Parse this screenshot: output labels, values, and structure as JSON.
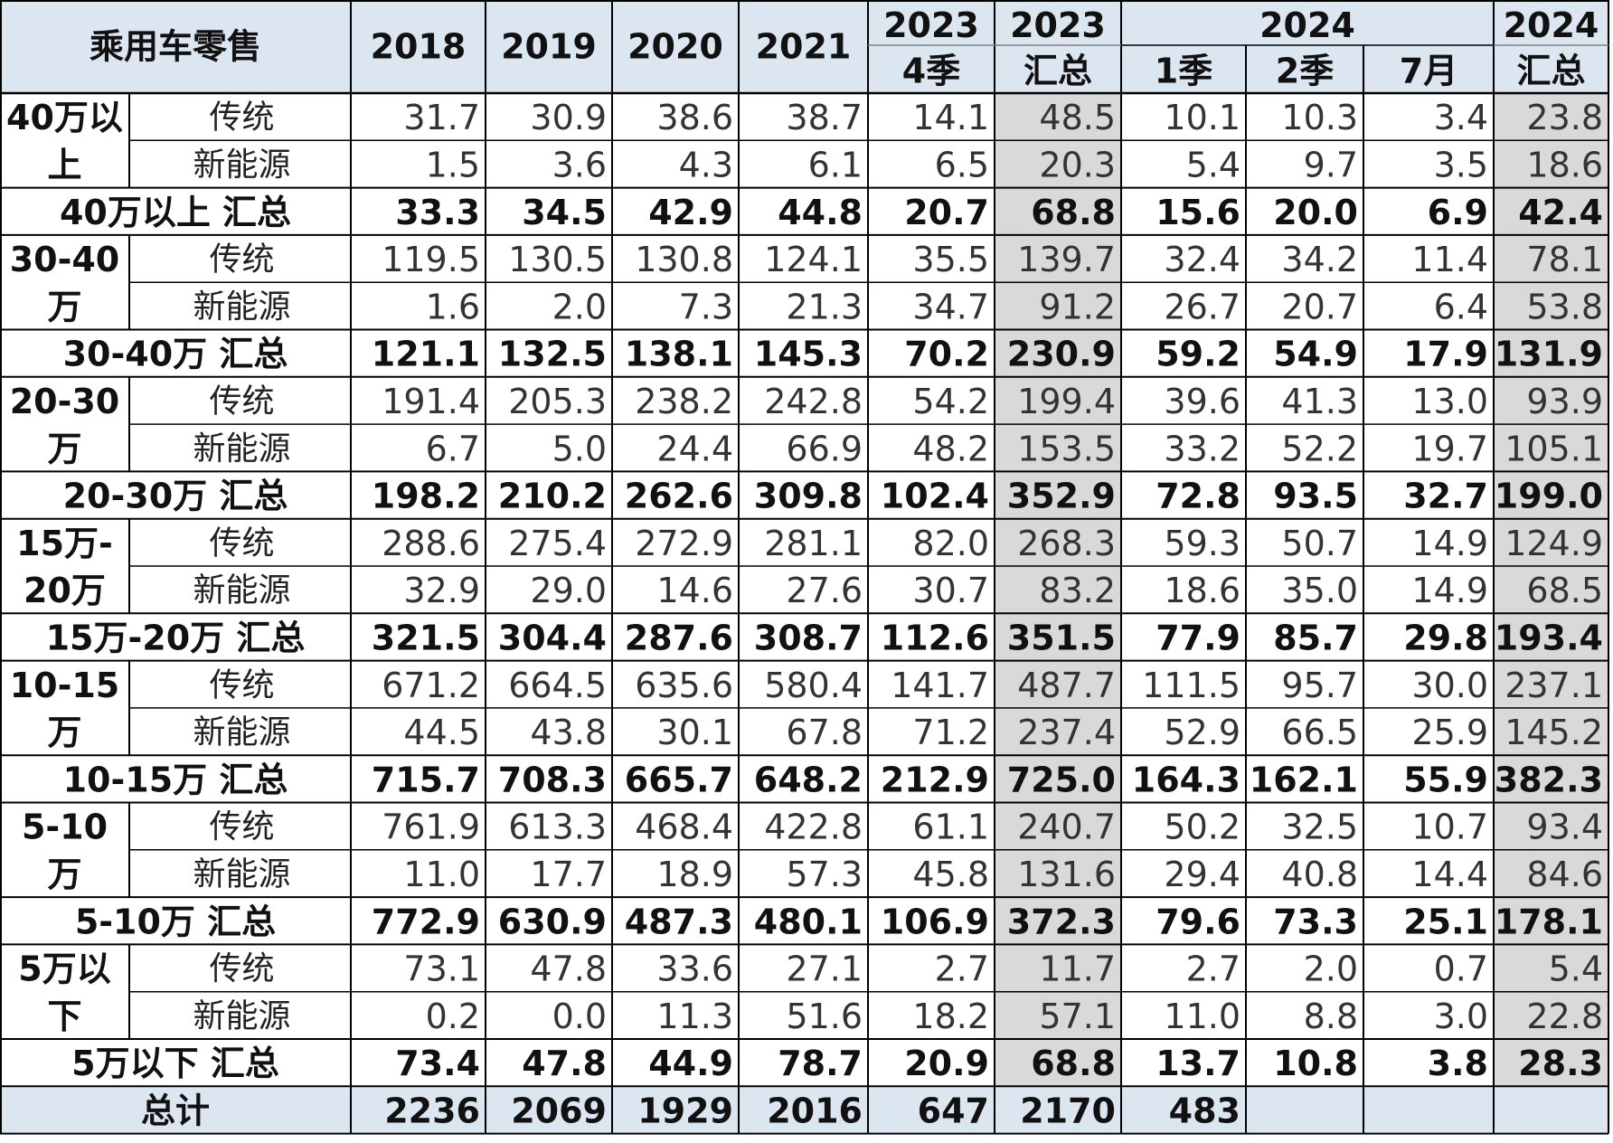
{
  "chart_data": {
    "type": "table",
    "title": "乘用车零售",
    "header_top": [
      "2018",
      "2019",
      "2020",
      "2021",
      "2023",
      "2023",
      "2024",
      "2024"
    ],
    "header_sub": [
      "4季",
      "汇总",
      "1季",
      "2季",
      "7月",
      "汇总"
    ],
    "columns": [
      "2018",
      "2019",
      "2020",
      "2021",
      "2023 4季",
      "2023 汇总",
      "2024 1季",
      "2024 2季",
      "2024 7月",
      "2024 汇总"
    ],
    "groups": [
      {
        "name_lines": [
          "40万以",
          "上"
        ],
        "rows": [
          {
            "label": "传统",
            "values": [
              "31.7",
              "30.9",
              "38.6",
              "38.7",
              "14.1",
              "48.5",
              "10.1",
              "10.3",
              "3.4",
              "23.8"
            ]
          },
          {
            "label": "新能源",
            "values": [
              "1.5",
              "3.6",
              "4.3",
              "6.1",
              "6.5",
              "20.3",
              "5.4",
              "9.7",
              "3.5",
              "18.6"
            ]
          }
        ],
        "total": {
          "label": "40万以上 汇总",
          "values": [
            "33.3",
            "34.5",
            "42.9",
            "44.8",
            "20.7",
            "68.8",
            "15.6",
            "20.0",
            "6.9",
            "42.4"
          ]
        }
      },
      {
        "name_lines": [
          "30-40",
          "万"
        ],
        "rows": [
          {
            "label": "传统",
            "values": [
              "119.5",
              "130.5",
              "130.8",
              "124.1",
              "35.5",
              "139.7",
              "32.4",
              "34.2",
              "11.4",
              "78.1"
            ]
          },
          {
            "label": "新能源",
            "values": [
              "1.6",
              "2.0",
              "7.3",
              "21.3",
              "34.7",
              "91.2",
              "26.7",
              "20.7",
              "6.4",
              "53.8"
            ]
          }
        ],
        "total": {
          "label": "30-40万 汇总",
          "values": [
            "121.1",
            "132.5",
            "138.1",
            "145.3",
            "70.2",
            "230.9",
            "59.2",
            "54.9",
            "17.9",
            "131.9"
          ]
        }
      },
      {
        "name_lines": [
          "20-30",
          "万"
        ],
        "rows": [
          {
            "label": "传统",
            "values": [
              "191.4",
              "205.3",
              "238.2",
              "242.8",
              "54.2",
              "199.4",
              "39.6",
              "41.3",
              "13.0",
              "93.9"
            ]
          },
          {
            "label": "新能源",
            "values": [
              "6.7",
              "5.0",
              "24.4",
              "66.9",
              "48.2",
              "153.5",
              "33.2",
              "52.2",
              "19.7",
              "105.1"
            ]
          }
        ],
        "total": {
          "label": "20-30万 汇总",
          "values": [
            "198.2",
            "210.2",
            "262.6",
            "309.8",
            "102.4",
            "352.9",
            "72.8",
            "93.5",
            "32.7",
            "199.0"
          ]
        }
      },
      {
        "name_lines": [
          "15万-",
          "20万"
        ],
        "rows": [
          {
            "label": "传统",
            "values": [
              "288.6",
              "275.4",
              "272.9",
              "281.1",
              "82.0",
              "268.3",
              "59.3",
              "50.7",
              "14.9",
              "124.9"
            ]
          },
          {
            "label": "新能源",
            "values": [
              "32.9",
              "29.0",
              "14.6",
              "27.6",
              "30.7",
              "83.2",
              "18.6",
              "35.0",
              "14.9",
              "68.5"
            ]
          }
        ],
        "total": {
          "label": "15万-20万 汇总",
          "values": [
            "321.5",
            "304.4",
            "287.6",
            "308.7",
            "112.6",
            "351.5",
            "77.9",
            "85.7",
            "29.8",
            "193.4"
          ]
        }
      },
      {
        "name_lines": [
          "10-15",
          "万"
        ],
        "rows": [
          {
            "label": "传统",
            "values": [
              "671.2",
              "664.5",
              "635.6",
              "580.4",
              "141.7",
              "487.7",
              "111.5",
              "95.7",
              "30.0",
              "237.1"
            ]
          },
          {
            "label": "新能源",
            "values": [
              "44.5",
              "43.8",
              "30.1",
              "67.8",
              "71.2",
              "237.4",
              "52.9",
              "66.5",
              "25.9",
              "145.2"
            ]
          }
        ],
        "total": {
          "label": "10-15万 汇总",
          "values": [
            "715.7",
            "708.3",
            "665.7",
            "648.2",
            "212.9",
            "725.0",
            "164.3",
            "162.1",
            "55.9",
            "382.3"
          ]
        }
      },
      {
        "name_lines": [
          "5-10",
          "万"
        ],
        "rows": [
          {
            "label": "传统",
            "values": [
              "761.9",
              "613.3",
              "468.4",
              "422.8",
              "61.1",
              "240.7",
              "50.2",
              "32.5",
              "10.7",
              "93.4"
            ]
          },
          {
            "label": "新能源",
            "values": [
              "11.0",
              "17.7",
              "18.9",
              "57.3",
              "45.8",
              "131.6",
              "29.4",
              "40.8",
              "14.4",
              "84.6"
            ]
          }
        ],
        "total": {
          "label": "5-10万 汇总",
          "values": [
            "772.9",
            "630.9",
            "487.3",
            "480.1",
            "106.9",
            "372.3",
            "79.6",
            "73.3",
            "25.1",
            "178.1"
          ]
        }
      },
      {
        "name_lines": [
          "5万以",
          "下"
        ],
        "rows": [
          {
            "label": "传统",
            "values": [
              "73.1",
              "47.8",
              "33.6",
              "27.1",
              "2.7",
              "11.7",
              "2.7",
              "2.0",
              "0.7",
              "5.4"
            ]
          },
          {
            "label": "新能源",
            "values": [
              "0.2",
              "0.0",
              "11.3",
              "51.6",
              "18.2",
              "57.1",
              "11.0",
              "8.8",
              "3.0",
              "22.8"
            ]
          }
        ],
        "total": {
          "label": "5万以下 汇总",
          "values": [
            "73.4",
            "47.8",
            "44.9",
            "78.7",
            "20.9",
            "68.8",
            "13.7",
            "10.8",
            "3.8",
            "28.3"
          ]
        }
      }
    ],
    "grand_total": {
      "label": "总计",
      "values": [
        "2236",
        "2069",
        "1929",
        "2016",
        "647",
        "2170",
        "483",
        "",
        "",
        ""
      ]
    }
  },
  "colors": {
    "header_fill": "#dce6f1",
    "summary_fill": "#d9d9d9",
    "total_fill": "#dce6f1",
    "grid": "#000000",
    "grid_light": "#7f7f7f"
  }
}
